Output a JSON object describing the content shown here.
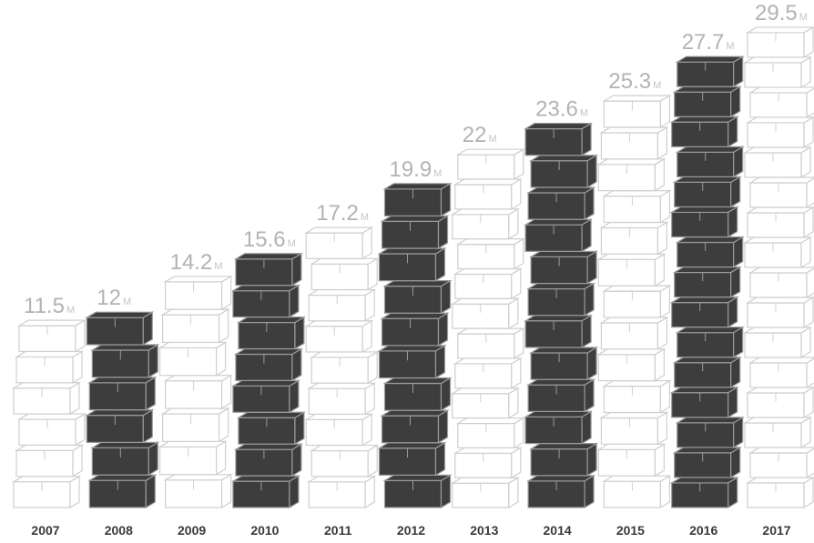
{
  "chart_data": {
    "type": "bar",
    "style": "stacked 3D box pictogram columns",
    "categories": [
      "2007",
      "2008",
      "2009",
      "2010",
      "2011",
      "2012",
      "2013",
      "2014",
      "2015",
      "2016",
      "2017"
    ],
    "values": [
      11.5,
      12,
      14.2,
      15.6,
      17.2,
      19.9,
      22,
      23.6,
      25.3,
      27.7,
      29.5
    ],
    "value_labels": [
      "11.5",
      "12",
      "14.2",
      "15.6",
      "17.2",
      "19.9",
      "22",
      "23.6",
      "25.3",
      "27.7",
      "29.5"
    ],
    "unit_label": "M",
    "dark_categories": [
      "2008",
      "2010",
      "2012",
      "2014",
      "2016"
    ],
    "colors": {
      "light_box_fill": "#ffffff",
      "light_box_stroke": "#cfcfcf",
      "dark_box_fill": "#3d3d3d",
      "dark_box_stroke": "#9a9a9a",
      "value_label": "#b3b3b3",
      "year_label": "#3a3a3a"
    },
    "grid": false,
    "legend": "none"
  }
}
